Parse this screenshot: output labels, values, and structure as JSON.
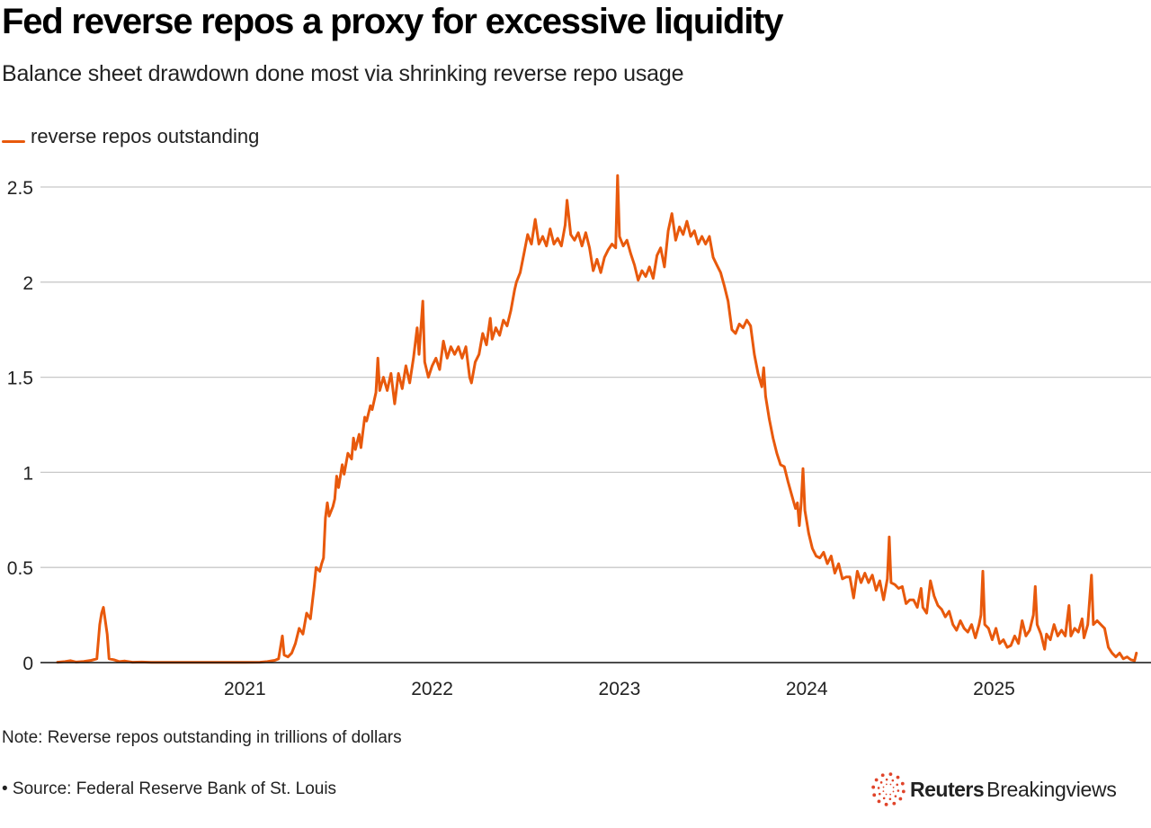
{
  "header": {
    "title": "Fed reverse repos a proxy for excessive liquidity",
    "subtitle": "Balance sheet drawdown done most via shrinking reverse repo usage"
  },
  "footer": {
    "note": "Note: Reverse repos outstanding in trillions of dollars",
    "source": "• Source: Federal Reserve Bank of St. Louis",
    "logo_bold": "Reuters",
    "logo_regular": "Breakingviews",
    "logo_color": "#e0442a"
  },
  "chart_data": {
    "type": "line",
    "title": "Fed reverse repos a proxy for excessive liquidity",
    "subtitle": "Balance sheet drawdown done most via shrinking reverse repo usage",
    "xlabel": "",
    "ylabel": "",
    "x_unit": "year (decimal)",
    "xlim": [
      2020.0,
      2025.85
    ],
    "ylim": [
      0,
      2.5
    ],
    "yticks": [
      0,
      0.5,
      1,
      1.5,
      2,
      2.5
    ],
    "ytick_labels": [
      "0",
      "0.5",
      "1",
      "1.5",
      "2",
      "2.5"
    ],
    "xticks": [
      2021,
      2022,
      2023,
      2024,
      2025
    ],
    "xtick_labels": [
      "2021",
      "2022",
      "2023",
      "2024",
      "2025"
    ],
    "grid": true,
    "legend": "top-left",
    "series": [
      {
        "name": "reverse repos outstanding",
        "color": "#e8590c",
        "points": [
          [
            2020.0,
            0.002
          ],
          [
            2020.04,
            0.005
          ],
          [
            2020.07,
            0.01
          ],
          [
            2020.1,
            0.003
          ],
          [
            2020.14,
            0.006
          ],
          [
            2020.18,
            0.012
          ],
          [
            2020.21,
            0.02
          ],
          [
            2020.225,
            0.2
          ],
          [
            2020.235,
            0.26
          ],
          [
            2020.245,
            0.29
          ],
          [
            2020.255,
            0.22
          ],
          [
            2020.265,
            0.15
          ],
          [
            2020.275,
            0.02
          ],
          [
            2020.3,
            0.015
          ],
          [
            2020.33,
            0.005
          ],
          [
            2020.36,
            0.008
          ],
          [
            2020.4,
            0.002
          ],
          [
            2020.45,
            0.003
          ],
          [
            2020.5,
            0.001
          ],
          [
            2020.6,
            0.001
          ],
          [
            2020.7,
            0.001
          ],
          [
            2020.8,
            0.001
          ],
          [
            2020.9,
            0.001
          ],
          [
            2021.0,
            0.001
          ],
          [
            2021.08,
            0.002
          ],
          [
            2021.12,
            0.005
          ],
          [
            2021.16,
            0.012
          ],
          [
            2021.18,
            0.02
          ],
          [
            2021.2,
            0.14
          ],
          [
            2021.21,
            0.04
          ],
          [
            2021.23,
            0.03
          ],
          [
            2021.25,
            0.05
          ],
          [
            2021.27,
            0.1
          ],
          [
            2021.29,
            0.18
          ],
          [
            2021.31,
            0.15
          ],
          [
            2021.33,
            0.26
          ],
          [
            2021.35,
            0.23
          ],
          [
            2021.37,
            0.4
          ],
          [
            2021.38,
            0.5
          ],
          [
            2021.4,
            0.48
          ],
          [
            2021.41,
            0.52
          ],
          [
            2021.42,
            0.55
          ],
          [
            2021.43,
            0.76
          ],
          [
            2021.44,
            0.84
          ],
          [
            2021.45,
            0.77
          ],
          [
            2021.47,
            0.82
          ],
          [
            2021.48,
            0.86
          ],
          [
            2021.49,
            0.98
          ],
          [
            2021.5,
            0.92
          ],
          [
            2021.52,
            1.04
          ],
          [
            2021.53,
            0.99
          ],
          [
            2021.55,
            1.1
          ],
          [
            2021.57,
            1.07
          ],
          [
            2021.58,
            1.18
          ],
          [
            2021.59,
            1.12
          ],
          [
            2021.61,
            1.2
          ],
          [
            2021.62,
            1.13
          ],
          [
            2021.64,
            1.29
          ],
          [
            2021.65,
            1.27
          ],
          [
            2021.67,
            1.35
          ],
          [
            2021.68,
            1.33
          ],
          [
            2021.7,
            1.42
          ],
          [
            2021.71,
            1.6
          ],
          [
            2021.72,
            1.43
          ],
          [
            2021.74,
            1.5
          ],
          [
            2021.76,
            1.43
          ],
          [
            2021.78,
            1.52
          ],
          [
            2021.8,
            1.36
          ],
          [
            2021.82,
            1.52
          ],
          [
            2021.84,
            1.44
          ],
          [
            2021.86,
            1.56
          ],
          [
            2021.88,
            1.47
          ],
          [
            2021.9,
            1.6
          ],
          [
            2021.92,
            1.76
          ],
          [
            2021.93,
            1.62
          ],
          [
            2021.95,
            1.9
          ],
          [
            2021.96,
            1.58
          ],
          [
            2021.98,
            1.5
          ],
          [
            2022.0,
            1.56
          ],
          [
            2022.02,
            1.6
          ],
          [
            2022.04,
            1.54
          ],
          [
            2022.06,
            1.69
          ],
          [
            2022.08,
            1.6
          ],
          [
            2022.1,
            1.66
          ],
          [
            2022.12,
            1.62
          ],
          [
            2022.14,
            1.66
          ],
          [
            2022.16,
            1.6
          ],
          [
            2022.18,
            1.66
          ],
          [
            2022.2,
            1.5
          ],
          [
            2022.21,
            1.47
          ],
          [
            2022.23,
            1.58
          ],
          [
            2022.25,
            1.62
          ],
          [
            2022.27,
            1.73
          ],
          [
            2022.29,
            1.67
          ],
          [
            2022.31,
            1.81
          ],
          [
            2022.32,
            1.7
          ],
          [
            2022.34,
            1.76
          ],
          [
            2022.36,
            1.72
          ],
          [
            2022.38,
            1.8
          ],
          [
            2022.4,
            1.77
          ],
          [
            2022.42,
            1.85
          ],
          [
            2022.44,
            1.96
          ],
          [
            2022.45,
            2.0
          ],
          [
            2022.47,
            2.05
          ],
          [
            2022.49,
            2.15
          ],
          [
            2022.51,
            2.25
          ],
          [
            2022.53,
            2.2
          ],
          [
            2022.55,
            2.33
          ],
          [
            2022.57,
            2.2
          ],
          [
            2022.59,
            2.24
          ],
          [
            2022.61,
            2.19
          ],
          [
            2022.63,
            2.28
          ],
          [
            2022.65,
            2.2
          ],
          [
            2022.67,
            2.23
          ],
          [
            2022.69,
            2.19
          ],
          [
            2022.71,
            2.3
          ],
          [
            2022.72,
            2.43
          ],
          [
            2022.74,
            2.25
          ],
          [
            2022.76,
            2.22
          ],
          [
            2022.78,
            2.26
          ],
          [
            2022.8,
            2.19
          ],
          [
            2022.82,
            2.26
          ],
          [
            2022.84,
            2.18
          ],
          [
            2022.86,
            2.06
          ],
          [
            2022.88,
            2.12
          ],
          [
            2022.9,
            2.05
          ],
          [
            2022.92,
            2.13
          ],
          [
            2022.94,
            2.17
          ],
          [
            2022.96,
            2.2
          ],
          [
            2022.98,
            2.18
          ],
          [
            2022.99,
            2.56
          ],
          [
            2023.0,
            2.24
          ],
          [
            2023.02,
            2.19
          ],
          [
            2023.04,
            2.22
          ],
          [
            2023.06,
            2.15
          ],
          [
            2023.08,
            2.09
          ],
          [
            2023.1,
            2.01
          ],
          [
            2023.12,
            2.06
          ],
          [
            2023.14,
            2.03
          ],
          [
            2023.16,
            2.08
          ],
          [
            2023.18,
            2.02
          ],
          [
            2023.2,
            2.14
          ],
          [
            2023.22,
            2.18
          ],
          [
            2023.24,
            2.08
          ],
          [
            2023.26,
            2.27
          ],
          [
            2023.28,
            2.36
          ],
          [
            2023.3,
            2.22
          ],
          [
            2023.32,
            2.29
          ],
          [
            2023.34,
            2.25
          ],
          [
            2023.36,
            2.32
          ],
          [
            2023.38,
            2.24
          ],
          [
            2023.4,
            2.27
          ],
          [
            2023.42,
            2.2
          ],
          [
            2023.44,
            2.24
          ],
          [
            2023.46,
            2.2
          ],
          [
            2023.48,
            2.24
          ],
          [
            2023.5,
            2.13
          ],
          [
            2023.52,
            2.09
          ],
          [
            2023.54,
            2.05
          ],
          [
            2023.56,
            1.98
          ],
          [
            2023.58,
            1.9
          ],
          [
            2023.6,
            1.75
          ],
          [
            2023.62,
            1.73
          ],
          [
            2023.64,
            1.78
          ],
          [
            2023.66,
            1.76
          ],
          [
            2023.68,
            1.8
          ],
          [
            2023.7,
            1.77
          ],
          [
            2023.72,
            1.62
          ],
          [
            2023.74,
            1.52
          ],
          [
            2023.76,
            1.45
          ],
          [
            2023.77,
            1.55
          ],
          [
            2023.78,
            1.4
          ],
          [
            2023.8,
            1.28
          ],
          [
            2023.82,
            1.18
          ],
          [
            2023.84,
            1.1
          ],
          [
            2023.86,
            1.04
          ],
          [
            2023.88,
            1.03
          ],
          [
            2023.9,
            0.95
          ],
          [
            2023.92,
            0.88
          ],
          [
            2023.94,
            0.81
          ],
          [
            2023.95,
            0.84
          ],
          [
            2023.96,
            0.72
          ],
          [
            2023.97,
            0.84
          ],
          [
            2023.98,
            1.02
          ],
          [
            2023.99,
            0.8
          ],
          [
            2024.01,
            0.68
          ],
          [
            2024.03,
            0.6
          ],
          [
            2024.05,
            0.56
          ],
          [
            2024.07,
            0.55
          ],
          [
            2024.09,
            0.58
          ],
          [
            2024.11,
            0.52
          ],
          [
            2024.13,
            0.56
          ],
          [
            2024.15,
            0.47
          ],
          [
            2024.17,
            0.52
          ],
          [
            2024.19,
            0.44
          ],
          [
            2024.21,
            0.45
          ],
          [
            2024.23,
            0.45
          ],
          [
            2024.25,
            0.34
          ],
          [
            2024.27,
            0.48
          ],
          [
            2024.29,
            0.42
          ],
          [
            2024.31,
            0.47
          ],
          [
            2024.33,
            0.42
          ],
          [
            2024.35,
            0.46
          ],
          [
            2024.37,
            0.38
          ],
          [
            2024.39,
            0.43
          ],
          [
            2024.41,
            0.33
          ],
          [
            2024.43,
            0.44
          ],
          [
            2024.44,
            0.66
          ],
          [
            2024.45,
            0.42
          ],
          [
            2024.47,
            0.41
          ],
          [
            2024.49,
            0.39
          ],
          [
            2024.51,
            0.4
          ],
          [
            2024.53,
            0.31
          ],
          [
            2024.55,
            0.33
          ],
          [
            2024.57,
            0.33
          ],
          [
            2024.59,
            0.29
          ],
          [
            2024.61,
            0.39
          ],
          [
            2024.62,
            0.29
          ],
          [
            2024.64,
            0.26
          ],
          [
            2024.66,
            0.43
          ],
          [
            2024.68,
            0.35
          ],
          [
            2024.7,
            0.3
          ],
          [
            2024.72,
            0.28
          ],
          [
            2024.74,
            0.24
          ],
          [
            2024.76,
            0.27
          ],
          [
            2024.78,
            0.2
          ],
          [
            2024.8,
            0.17
          ],
          [
            2024.82,
            0.22
          ],
          [
            2024.84,
            0.18
          ],
          [
            2024.86,
            0.16
          ],
          [
            2024.88,
            0.2
          ],
          [
            2024.9,
            0.13
          ],
          [
            2024.92,
            0.2
          ],
          [
            2024.93,
            0.25
          ],
          [
            2024.94,
            0.48
          ],
          [
            2024.95,
            0.2
          ],
          [
            2024.97,
            0.18
          ],
          [
            2024.99,
            0.12
          ],
          [
            2025.01,
            0.18
          ],
          [
            2025.03,
            0.1
          ],
          [
            2025.05,
            0.12
          ],
          [
            2025.07,
            0.08
          ],
          [
            2025.09,
            0.09
          ],
          [
            2025.11,
            0.14
          ],
          [
            2025.13,
            0.1
          ],
          [
            2025.15,
            0.22
          ],
          [
            2025.17,
            0.14
          ],
          [
            2025.19,
            0.17
          ],
          [
            2025.21,
            0.25
          ],
          [
            2025.22,
            0.4
          ],
          [
            2025.23,
            0.2
          ],
          [
            2025.25,
            0.15
          ],
          [
            2025.27,
            0.07
          ],
          [
            2025.28,
            0.15
          ],
          [
            2025.3,
            0.12
          ],
          [
            2025.32,
            0.2
          ],
          [
            2025.34,
            0.14
          ],
          [
            2025.36,
            0.17
          ],
          [
            2025.38,
            0.14
          ],
          [
            2025.4,
            0.3
          ],
          [
            2025.41,
            0.14
          ],
          [
            2025.43,
            0.18
          ],
          [
            2025.45,
            0.16
          ],
          [
            2025.47,
            0.23
          ],
          [
            2025.48,
            0.13
          ],
          [
            2025.5,
            0.2
          ],
          [
            2025.52,
            0.46
          ],
          [
            2025.53,
            0.2
          ],
          [
            2025.55,
            0.22
          ],
          [
            2025.57,
            0.2
          ],
          [
            2025.59,
            0.18
          ],
          [
            2025.61,
            0.08
          ],
          [
            2025.63,
            0.05
          ],
          [
            2025.65,
            0.03
          ],
          [
            2025.67,
            0.05
          ],
          [
            2025.69,
            0.02
          ],
          [
            2025.71,
            0.03
          ],
          [
            2025.73,
            0.015
          ],
          [
            2025.75,
            0.01
          ],
          [
            2025.76,
            0.05
          ]
        ]
      }
    ]
  }
}
